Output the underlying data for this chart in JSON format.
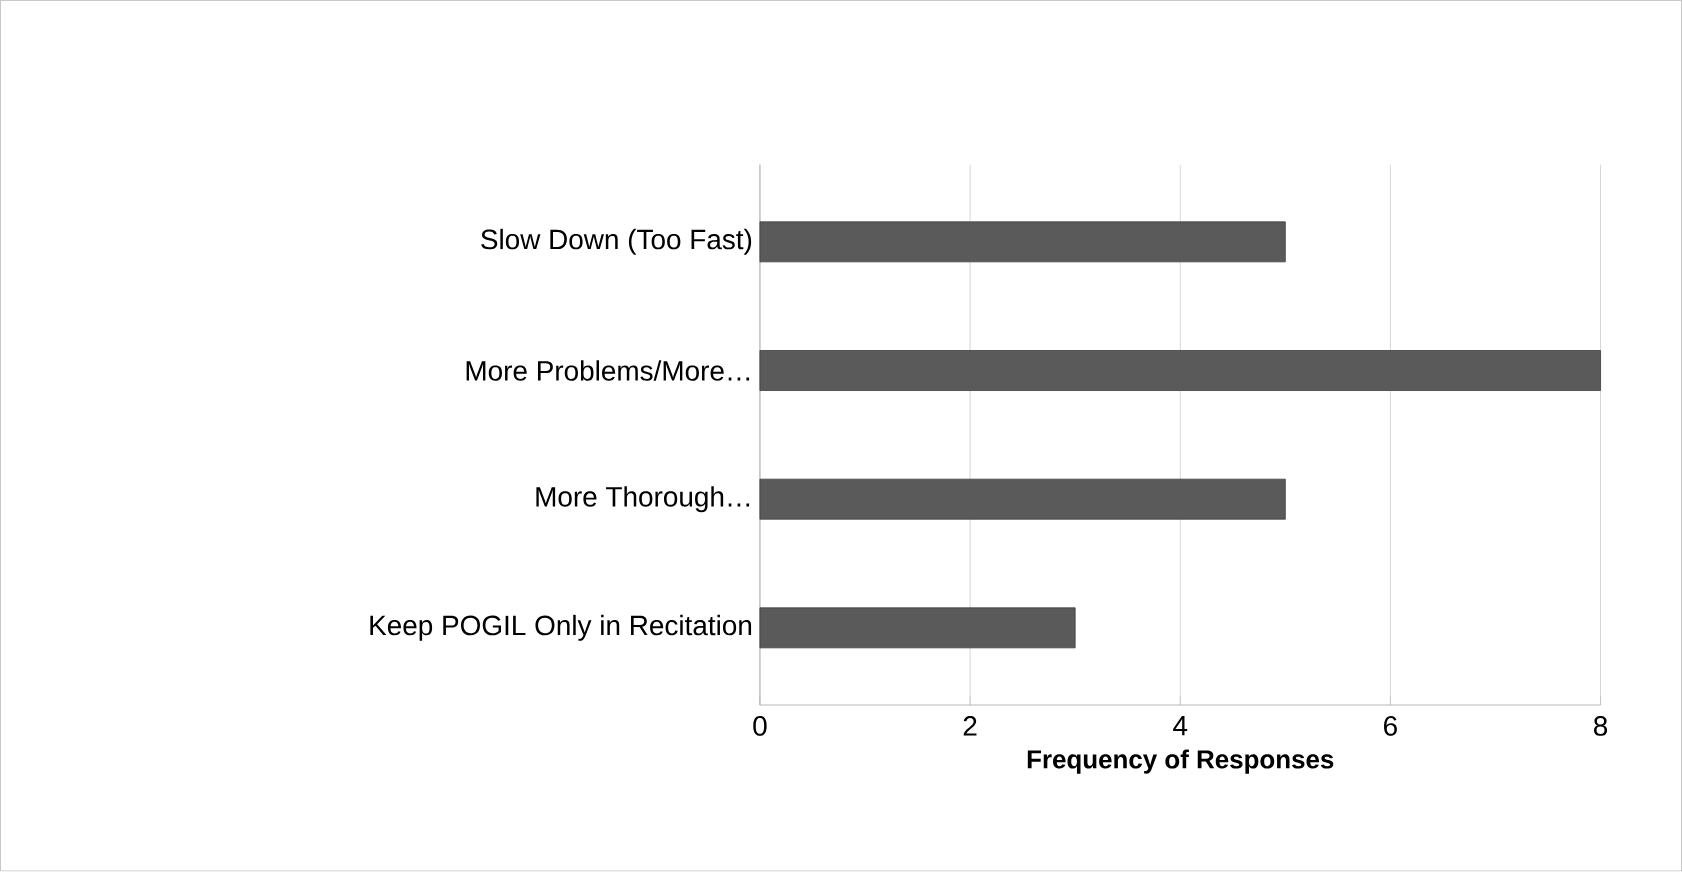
{
  "chart_data": {
    "type": "bar",
    "orientation": "horizontal",
    "xlabel": "Frequency of Responses",
    "categories": [
      "Slow Down (Too Fast)",
      "More Problems/More…",
      "More Thorough…",
      "Keep POGIL Only in Recitation"
    ],
    "values": [
      5,
      8,
      5,
      3
    ],
    "color": "#5a5a5a",
    "xlim": [
      0,
      8
    ],
    "xticks": [
      0,
      2,
      4,
      6,
      8
    ],
    "grid": "x"
  }
}
